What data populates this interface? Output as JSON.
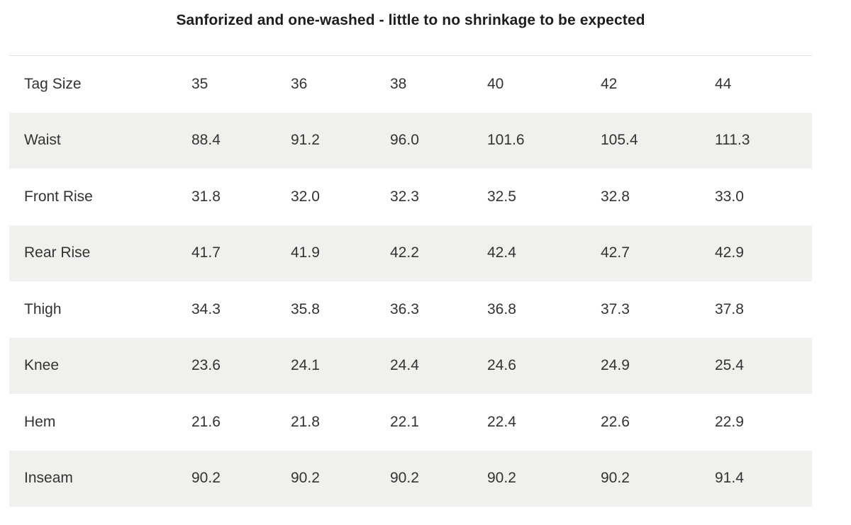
{
  "title": "Sanforized and one-washed - little to no shrinkage to be expected",
  "colors": {
    "background": "#ffffff",
    "stripe": "#f0f0ef",
    "top_border": "#e2e2e2",
    "cell_text": "#333333",
    "title_text": "#1e1e1e"
  },
  "chart_data": {
    "type": "table",
    "title": "Sanforized and one-washed - little to no shrinkage to be expected",
    "columns": [
      "Tag Size",
      "35",
      "36",
      "38",
      "40",
      "42",
      "44"
    ],
    "rows": [
      [
        "Waist",
        "88.4",
        "91.2",
        "96.0",
        "101.6",
        "105.4",
        "111.3"
      ],
      [
        "Front Rise",
        "31.8",
        "32.0",
        "32.3",
        "32.5",
        "32.8",
        "33.0"
      ],
      [
        "Rear Rise",
        "41.7",
        "41.9",
        "42.2",
        "42.4",
        "42.7",
        "42.9"
      ],
      [
        "Thigh",
        "34.3",
        "35.8",
        "36.3",
        "36.8",
        "37.3",
        "37.8"
      ],
      [
        "Knee",
        "23.6",
        "24.1",
        "24.4",
        "24.6",
        "24.9",
        "25.4"
      ],
      [
        "Hem",
        "21.6",
        "21.8",
        "22.1",
        "22.4",
        "22.6",
        "22.9"
      ],
      [
        "Inseam",
        "90.2",
        "90.2",
        "90.2",
        "90.2",
        "90.2",
        "91.4"
      ]
    ],
    "layout": {
      "grid": "off",
      "striped_rows": [
        0,
        2,
        4,
        6
      ],
      "header_position": "top-row"
    }
  }
}
